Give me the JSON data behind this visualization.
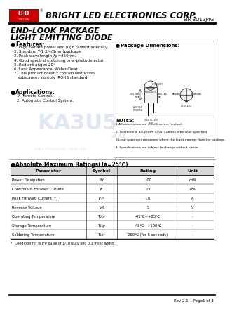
{
  "title_company": "BRIGHT LED ELECTRONICS CORP.",
  "part_number": "BIR-BO13J4G",
  "product_title_line1": "END-LOOK PACKAGE",
  "product_title_line2": "LIGHT EMITTING DIODE",
  "features_header": "Features:",
  "features": [
    "1. High radiant power and high radiant intensity.",
    "2. Standard T-1 3/4(5mm)package.",
    "3. Peak wavelength λp=850nm.",
    "4. Good spectral matching to si-photodetector.",
    "5. Radiant angle: 20°",
    "6. Lens Appearance: Water Clear.",
    "7. This product doesn't contain restriction",
    "   substance,  comply  ROHS standard"
  ],
  "pkg_dim_header": "Package Dimensions:",
  "applications_header": "Applications:",
  "applications": [
    "1. Remote Control.",
    "2. Automatic Control System."
  ],
  "notes_header": "NOTES:",
  "notes": [
    "1.All dimensions are in millimeters (inches).",
    "2. Tolerance is ±0.25mm (0.01\") unless otherwise specified.",
    "3.Lead spacing is measured where the leads emerge from the package.",
    "4. Specifications are subject to change without notice."
  ],
  "table_header": "Absolute Maximum Ratings(Ta=25℃)",
  "table_columns": [
    "Parameter",
    "Symbol",
    "Rating",
    "Unit"
  ],
  "table_rows": [
    [
      "Power Dissipation",
      "Pd",
      "100",
      "mW"
    ],
    [
      "Continuous Forward Current",
      "IF",
      "100",
      "mA"
    ],
    [
      "Peak Forward Current  *)",
      "IFP",
      "1.0",
      "A"
    ],
    [
      "Reverse Voltage",
      "VR",
      "5",
      "V"
    ],
    [
      "Operating Temperature",
      "Topr",
      "-45℃~+85℃",
      "-"
    ],
    [
      "Storage Temperature",
      "Tstg",
      "-45℃~+100℃",
      "-"
    ],
    [
      "Soldering Temperature",
      "Tsol",
      "260℃ (for 5 seconds)",
      "-"
    ]
  ],
  "footnote": "*) Condition for is IFP pulse of 1/10 duty and 0.1 msec width.",
  "rev_text": "Rev 2.1    Page1 of 3",
  "logo_color": "#cc0000",
  "bg_color": "#ffffff",
  "watermark_color": "#c8d4e8",
  "watermark_text": "KA3U5",
  "watermark_subtext": "ЭЛЕКТРОННЫЙ  ПОРТАЛ"
}
